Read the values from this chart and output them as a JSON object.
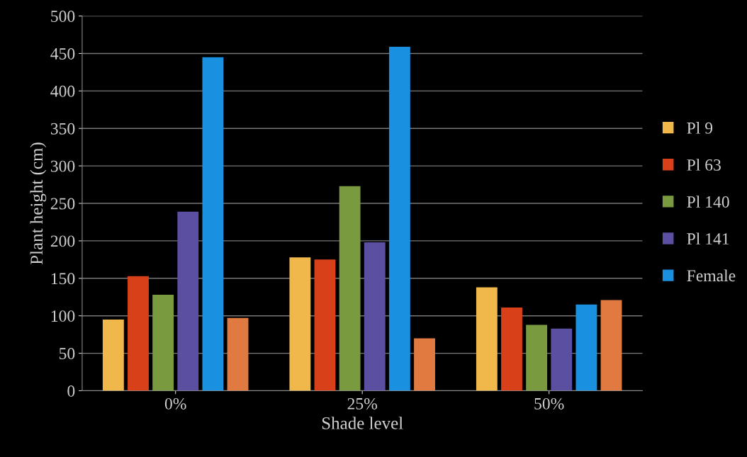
{
  "chart_data": {
    "type": "bar",
    "xlabel": "Shade level",
    "ylabel": "Plant height (cm)",
    "categories": [
      "0%",
      "25%",
      "50%"
    ],
    "series": [
      {
        "name": "Pl 9",
        "color": "#f0b84a",
        "values": [
          95,
          178,
          138
        ]
      },
      {
        "name": "Pl 63",
        "color": "#d8401a",
        "values": [
          153,
          175,
          111
        ]
      },
      {
        "name": "Pl 140",
        "color": "#7a9a40",
        "values": [
          128,
          273,
          88
        ]
      },
      {
        "name": "Pl 141",
        "color": "#5a4fa0",
        "values": [
          239,
          198,
          83
        ]
      },
      {
        "name": "Female",
        "color": "#1a90e0",
        "values": [
          445,
          459,
          115
        ]
      },
      {
        "color": "#e07a40",
        "values": [
          97,
          70,
          121
        ]
      }
    ],
    "ylim": [
      0,
      500
    ],
    "yticks": [
      0,
      50,
      100,
      150,
      200,
      250,
      300,
      350,
      400,
      450,
      500
    ],
    "grid": "y",
    "legend": "right"
  }
}
